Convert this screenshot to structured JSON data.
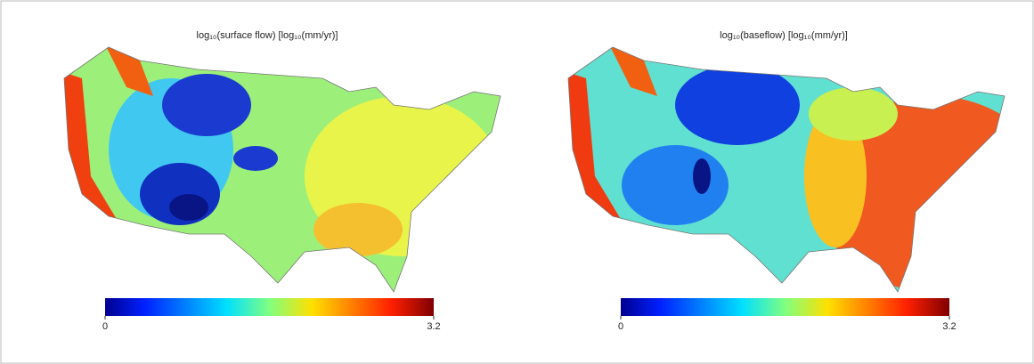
{
  "panels": [
    {
      "title": "log₁₀(surface flow) [log₁₀(mm/yr)]",
      "colorbar": {
        "min": 0,
        "max": 3.2,
        "ticks": [
          0,
          3.2
        ]
      }
    },
    {
      "title": "log₁₀(baseflow) [log₁₀(mm/yr)]",
      "colorbar": {
        "min": 0,
        "max": 3.2,
        "ticks": [
          0,
          3.2
        ]
      }
    }
  ]
}
